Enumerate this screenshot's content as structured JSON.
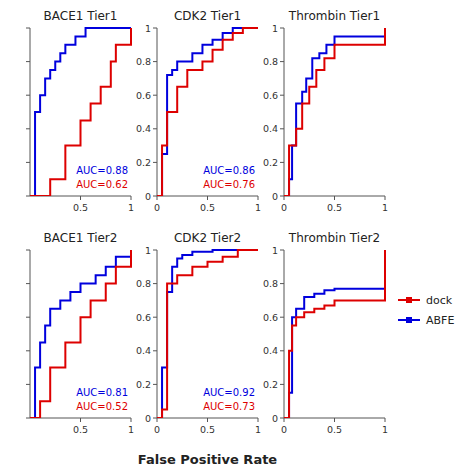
{
  "chart_data": [
    {
      "type": "step",
      "title": "BACE1 Tier1",
      "xlim": [
        0,
        1.0
      ],
      "ylim": [
        0,
        1.0
      ],
      "xticks": [
        0.5,
        1
      ],
      "yticks": [
        0,
        0.2,
        0.4,
        0.6,
        0.8,
        1
      ],
      "tick_labels": "x",
      "annotations": [
        "AUC=0.88",
        "AUC=0.62"
      ],
      "series": [
        {
          "name": "ABFE",
          "color": "#0000dd",
          "x": [
            0,
            0.05,
            0.1,
            0.15,
            0.2,
            0.25,
            0.3,
            0.35,
            0.45,
            0.55,
            1.0
          ],
          "values": [
            0,
            0.5,
            0.6,
            0.7,
            0.75,
            0.8,
            0.85,
            0.9,
            0.95,
            1.0,
            1.0
          ]
        },
        {
          "name": "dock",
          "color": "#dd0000",
          "x": [
            0,
            0.2,
            0.35,
            0.5,
            0.6,
            0.7,
            0.8,
            0.85,
            1.0
          ],
          "values": [
            0,
            0.1,
            0.3,
            0.45,
            0.55,
            0.65,
            0.8,
            0.9,
            1.0
          ]
        }
      ]
    },
    {
      "type": "step",
      "title": "CDK2 Tier1",
      "xlim": [
        0,
        1.0
      ],
      "ylim": [
        0,
        1.0
      ],
      "xticks": [
        0,
        0.5,
        1
      ],
      "yticks": [
        0,
        0.2,
        0.4,
        0.6,
        0.8,
        1
      ],
      "annotations": [
        "AUC=0.86",
        "AUC=0.76"
      ],
      "series": [
        {
          "name": "ABFE",
          "color": "#0000dd",
          "x": [
            0,
            0.05,
            0.1,
            0.15,
            0.2,
            0.35,
            0.45,
            0.55,
            0.65,
            0.75,
            1.0
          ],
          "values": [
            0,
            0.25,
            0.72,
            0.75,
            0.8,
            0.85,
            0.9,
            0.93,
            0.97,
            1.0,
            1.0
          ]
        },
        {
          "name": "dock",
          "color": "#dd0000",
          "x": [
            0,
            0.05,
            0.1,
            0.2,
            0.3,
            0.45,
            0.55,
            0.65,
            0.75,
            0.85,
            1.0
          ],
          "values": [
            0,
            0.3,
            0.5,
            0.65,
            0.75,
            0.8,
            0.87,
            0.93,
            0.97,
            1.0,
            1.0
          ]
        }
      ]
    },
    {
      "type": "step",
      "title": "Thrombin Tier1",
      "xlim": [
        0,
        1.0
      ],
      "ylim": [
        0,
        1.0
      ],
      "xticks": [
        0,
        0.5,
        1
      ],
      "yticks": [
        0,
        0.2,
        0.4,
        0.6,
        0.8,
        1
      ],
      "series": [
        {
          "name": "ABFE",
          "color": "#0000dd",
          "x": [
            0,
            0.05,
            0.08,
            0.12,
            0.18,
            0.22,
            0.28,
            0.35,
            0.42,
            0.5,
            1.0
          ],
          "values": [
            0,
            0.1,
            0.3,
            0.55,
            0.62,
            0.7,
            0.82,
            0.85,
            0.9,
            0.95,
            1.0
          ]
        },
        {
          "name": "dock",
          "color": "#dd0000",
          "x": [
            0,
            0.05,
            0.12,
            0.18,
            0.25,
            0.32,
            0.4,
            0.5,
            1.0
          ],
          "values": [
            0,
            0.3,
            0.4,
            0.55,
            0.65,
            0.75,
            0.82,
            0.9,
            1.0
          ]
        }
      ]
    },
    {
      "type": "step",
      "title": "BACE1 Tier2",
      "xlim": [
        0,
        1.0
      ],
      "ylim": [
        0,
        1.0
      ],
      "xticks": [
        0.5,
        1
      ],
      "yticks": [
        0,
        0.2,
        0.4,
        0.6,
        0.8,
        1
      ],
      "tick_labels": "x",
      "annotations": [
        "AUC=0.81",
        "AUC=0.52"
      ],
      "series": [
        {
          "name": "ABFE",
          "color": "#0000dd",
          "x": [
            0,
            0.05,
            0.1,
            0.15,
            0.2,
            0.3,
            0.4,
            0.5,
            0.65,
            0.75,
            0.85,
            1.0
          ],
          "values": [
            0,
            0.3,
            0.45,
            0.55,
            0.65,
            0.7,
            0.75,
            0.8,
            0.85,
            0.9,
            0.96,
            1.0
          ]
        },
        {
          "name": "dock",
          "color": "#dd0000",
          "x": [
            0,
            0.1,
            0.2,
            0.35,
            0.5,
            0.6,
            0.75,
            0.85,
            1.0
          ],
          "values": [
            0,
            0.1,
            0.3,
            0.45,
            0.6,
            0.7,
            0.8,
            0.9,
            1.0
          ]
        }
      ]
    },
    {
      "type": "step",
      "title": "CDK2 Tier2",
      "xlim": [
        0,
        1.0
      ],
      "ylim": [
        0,
        1.0
      ],
      "xticks": [
        0,
        0.5,
        1
      ],
      "yticks": [
        0,
        0.2,
        0.4,
        0.6,
        0.8,
        1
      ],
      "annotations": [
        "AUC=0.92",
        "AUC=0.73"
      ],
      "series": [
        {
          "name": "ABFE",
          "color": "#0000dd",
          "x": [
            0,
            0.05,
            0.1,
            0.15,
            0.2,
            0.25,
            0.35,
            0.55,
            1.0
          ],
          "values": [
            0,
            0.3,
            0.75,
            0.9,
            0.95,
            0.97,
            0.99,
            1.0,
            1.0
          ]
        },
        {
          "name": "dock",
          "color": "#dd0000",
          "x": [
            0,
            0.05,
            0.1,
            0.2,
            0.35,
            0.5,
            0.65,
            0.8,
            1.0
          ],
          "values": [
            0,
            0.05,
            0.8,
            0.85,
            0.9,
            0.93,
            0.96,
            1.0,
            1.0
          ]
        }
      ]
    },
    {
      "type": "step",
      "title": "Thrombin Tier2",
      "xlim": [
        0,
        1.0
      ],
      "ylim": [
        0,
        1.0
      ],
      "xticks": [
        0,
        0.5,
        1
      ],
      "yticks": [
        0,
        0.2,
        0.4,
        0.6,
        0.8,
        1
      ],
      "series": [
        {
          "name": "ABFE",
          "color": "#0000dd",
          "x": [
            0,
            0.05,
            0.08,
            0.12,
            0.2,
            0.3,
            0.4,
            0.5,
            1.0
          ],
          "values": [
            0,
            0.15,
            0.6,
            0.65,
            0.72,
            0.74,
            0.76,
            0.77,
            1.0
          ]
        },
        {
          "name": "dock",
          "color": "#dd0000",
          "x": [
            0,
            0.05,
            0.08,
            0.12,
            0.2,
            0.3,
            0.4,
            0.5,
            1.0
          ],
          "values": [
            0,
            0.4,
            0.55,
            0.6,
            0.63,
            0.65,
            0.67,
            0.7,
            1.0
          ]
        }
      ]
    }
  ],
  "xlabel": "False Positive Rate",
  "legend": "right"
}
